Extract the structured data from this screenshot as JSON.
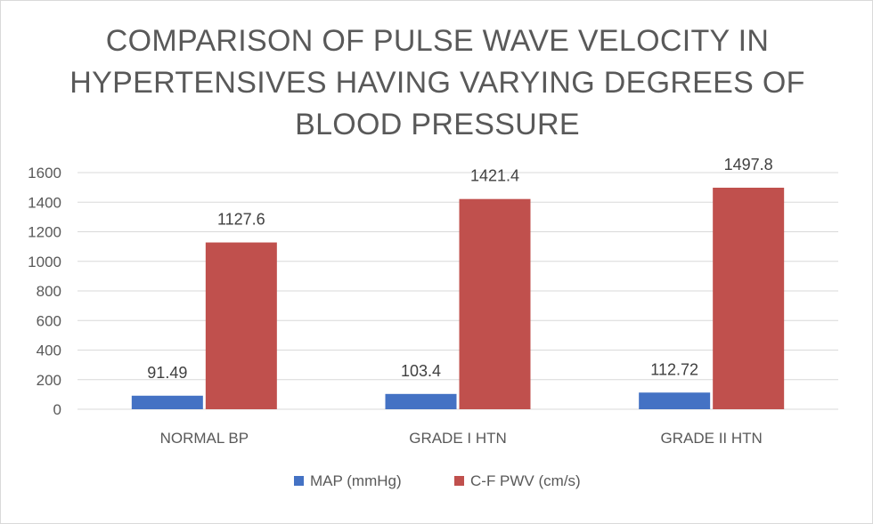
{
  "chart_data": {
    "type": "bar",
    "title_lines": [
      "COMPARISON OF PULSE WAVE VELOCITY IN",
      "HYPERTENSIVES HAVING VARYING DEGREES OF",
      "BLOOD PRESSURE"
    ],
    "categories": [
      "NORMAL BP",
      "GRADE I HTN",
      "GRADE II HTN"
    ],
    "series": [
      {
        "name": "MAP (mmHg)",
        "values": [
          91.49,
          103.4,
          112.72
        ],
        "labels": [
          "91.49",
          "103.4",
          "112.72"
        ],
        "color": "#4472c4"
      },
      {
        "name": "C-F PWV (cm/s)",
        "values": [
          1127.6,
          1421.4,
          1497.8
        ],
        "labels": [
          "1127.6",
          "1421.4",
          "1497.8"
        ],
        "color": "#c0504d"
      }
    ],
    "ylim": [
      0,
      1600
    ],
    "yticks": [
      0,
      200,
      400,
      600,
      800,
      1000,
      1200,
      1400,
      1600
    ],
    "grid": true,
    "legend_position": "bottom"
  }
}
